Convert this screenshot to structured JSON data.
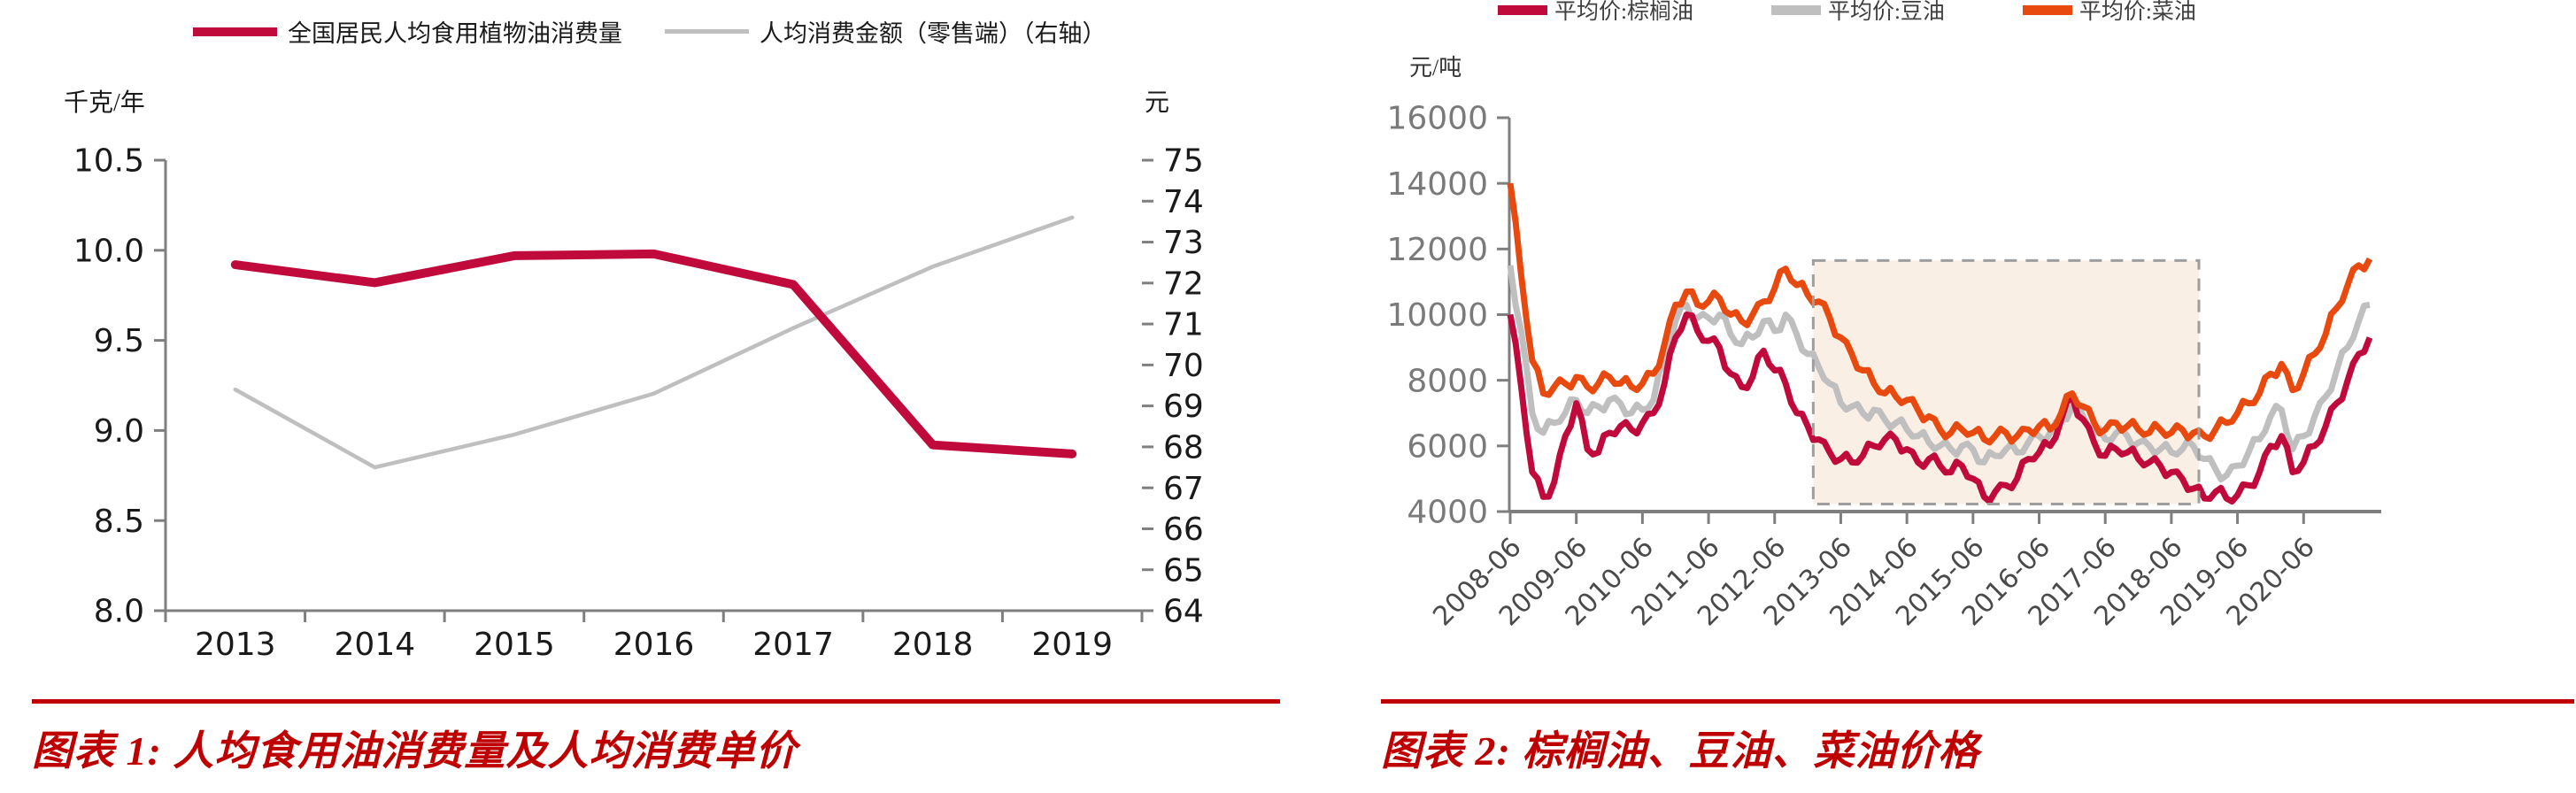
{
  "theme": {
    "background": "#FFFFFF",
    "caption_color": "#BE0000",
    "rule_color": "#C00000",
    "axis_color": "#7F7F7F"
  },
  "chart_data": [
    {
      "id": "chart1",
      "type": "line",
      "caption": "图表 1: 人均食用油消费量及人均消费单价",
      "legend": [
        {
          "label": "全国居民人均食用植物油消费量"
        },
        {
          "label": "人均消费金额（零售端）（右轴）"
        }
      ],
      "left_axis": {
        "title": "千克/年",
        "min": 8.0,
        "max": 10.5,
        "step": 0.5,
        "tick_labels": [
          "10.5",
          "10.0",
          "9.5",
          "9.0",
          "8.5",
          "8.0"
        ]
      },
      "right_axis": {
        "title": "元",
        "min": 64,
        "max": 75,
        "step": 1,
        "tick_labels": [
          "75",
          "74",
          "73",
          "72",
          "71",
          "70",
          "69",
          "68",
          "67",
          "66",
          "65",
          "64"
        ]
      },
      "x_categories": [
        "2013",
        "2014",
        "2015",
        "2016",
        "2017",
        "2018",
        "2019"
      ],
      "series": [
        {
          "key": "consumption",
          "name": "全国居民人均食用植物油消费量",
          "axis": "left",
          "color": "#C00A3C",
          "stroke_width": 10,
          "values": [
            9.92,
            9.82,
            9.97,
            9.98,
            9.81,
            8.92,
            8.87
          ]
        },
        {
          "key": "amount",
          "name": "人均消费金额（零售端）（右轴）",
          "axis": "right",
          "color": "#BFBFBF",
          "stroke_width": 4.5,
          "values": [
            69.4,
            67.5,
            68.3,
            69.3,
            70.9,
            72.4,
            73.6
          ]
        }
      ]
    },
    {
      "id": "chart2",
      "type": "line",
      "caption": "图表 2: 棕榈油、豆油、菜油价格",
      "legend": [
        {
          "label": "平均价:棕榈油"
        },
        {
          "label": "平均价:豆油"
        },
        {
          "label": "平均价:菜油"
        }
      ],
      "y_axis": {
        "title": "元/吨",
        "min": 4000,
        "max": 16000,
        "step": 2000,
        "tick_labels": [
          "16000",
          "14000",
          "12000",
          "10000",
          "8000",
          "6000",
          "4000"
        ]
      },
      "x_axis": {
        "start": "2008-06",
        "x_step_months": 2,
        "tick_labels": [
          "2008-06",
          "2009-06",
          "2010-06",
          "2011-06",
          "2012-06",
          "2013-06",
          "2014-06",
          "2015-06",
          "2016-06",
          "2017-06",
          "2018-06",
          "2019-06",
          "2020-06"
        ]
      },
      "highlight_box": {
        "start_month_offset": 55,
        "end_month_offset": 125,
        "top_value": 11650,
        "bottom_value": 4230,
        "fill": "#FAEFE5",
        "border": "#9E9E9E"
      },
      "texture_amplitude": 220,
      "series": [
        {
          "key": "palm",
          "name": "平均价:棕榈油",
          "color": "#C00A3C",
          "values": [
            10000,
            7800,
            5200,
            4450,
            4900,
            6300,
            7300,
            5900,
            5800,
            6400,
            6600,
            6500,
            6700,
            7000,
            7900,
            9300,
            10000,
            9500,
            9200,
            9000,
            8200,
            7800,
            8100,
            8900,
            8300,
            7900,
            7000,
            6600,
            6200,
            5800,
            5600,
            5500,
            5700,
            6000,
            6200,
            6200,
            5900,
            5500,
            5600,
            5400,
            5200,
            5400,
            5000,
            4450,
            4600,
            4800,
            5000,
            5600,
            5800,
            6000,
            6800,
            7500,
            6800,
            6100,
            5700,
            5900,
            5800,
            5600,
            5500,
            5400,
            5200,
            5000,
            4700,
            4400,
            4600,
            4400,
            4500,
            4800,
            5200,
            6000,
            6300,
            5200,
            5500,
            6000,
            6600,
            7300,
            8000,
            8800,
            9300
          ]
        },
        {
          "key": "soy",
          "name": "平均价:豆油",
          "color": "#BFBFBF",
          "values": [
            11500,
            9500,
            7000,
            6400,
            6700,
            7000,
            7400,
            7000,
            7200,
            7400,
            7300,
            7000,
            7100,
            7400,
            8600,
            9800,
            10300,
            9900,
            9900,
            10000,
            9400,
            9100,
            9300,
            9800,
            9500,
            10000,
            9400,
            8800,
            8400,
            7900,
            7300,
            7200,
            7000,
            7100,
            6800,
            6700,
            6500,
            6300,
            6100,
            6000,
            5900,
            6000,
            5900,
            5500,
            5700,
            5900,
            5800,
            6100,
            6300,
            6400,
            6800,
            7200,
            6900,
            6400,
            6200,
            6400,
            6300,
            6100,
            6000,
            5900,
            5800,
            5900,
            6000,
            5600,
            5300,
            5100,
            5400,
            5800,
            6200,
            6900,
            7100,
            5900,
            6300,
            6900,
            7500,
            8300,
            9000,
            9800,
            10300
          ]
        },
        {
          "key": "rapeseed",
          "name": "平均价:菜油",
          "color": "#E8490F",
          "values": [
            14000,
            11200,
            8600,
            7600,
            7800,
            7900,
            8100,
            7800,
            7900,
            8100,
            7900,
            7800,
            7900,
            8200,
            9100,
            10300,
            10700,
            10300,
            10400,
            10500,
            10000,
            9800,
            10000,
            10400,
            10800,
            11400,
            10900,
            10600,
            10400,
            9900,
            9300,
            8800,
            8300,
            7900,
            7600,
            7500,
            7400,
            7100,
            6900,
            6500,
            6400,
            6500,
            6400,
            6200,
            6300,
            6400,
            6300,
            6500,
            6600,
            6500,
            7000,
            7600,
            7200,
            6700,
            6500,
            6700,
            6600,
            6500,
            6400,
            6500,
            6400,
            6500,
            6400,
            6300,
            6500,
            6700,
            7000,
            7300,
            7600,
            8200,
            8500,
            7700,
            8200,
            8800,
            9400,
            10200,
            10900,
            11500,
            11700
          ]
        }
      ]
    }
  ]
}
